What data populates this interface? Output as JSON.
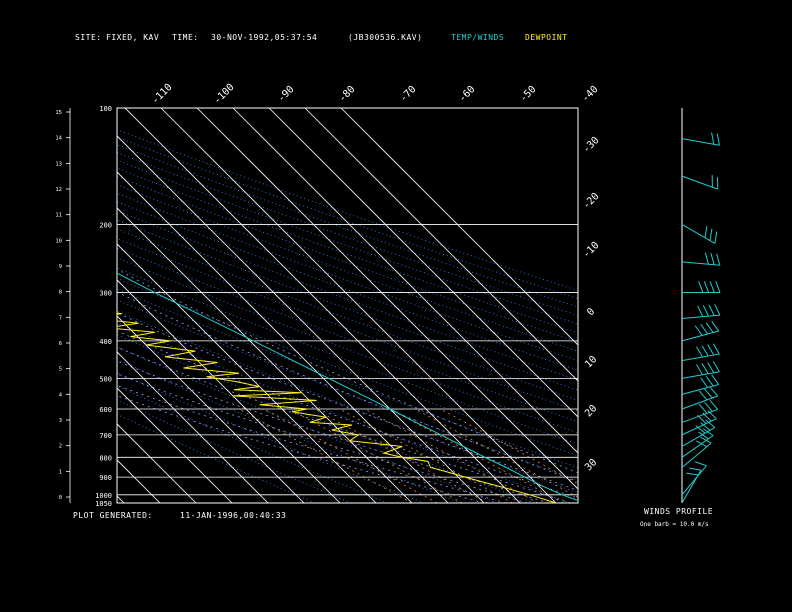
{
  "header": {
    "site_label": "SITE:",
    "site_value": "FIXED, KAV",
    "time_label": "TIME:",
    "time_value": "30-NOV-1992,05:37:54",
    "file_value": "(JB300536.KAV)",
    "legend_temp": "TEMP/WINDS",
    "legend_dew": "DEWPOINT"
  },
  "footer": {
    "generated_label": "PLOT GENERATED:",
    "generated_value": "11-JAN-1996,00:40:33",
    "winds_title": "WINDS PROFILE",
    "winds_note": "One barb = 10.0 m/s"
  },
  "colors": {
    "temp": "#22cccc",
    "dew": "#ffee22",
    "grid": "#ffffff",
    "mixing": "#ff9944",
    "adiabat": "#3388ff",
    "moist": "#9999ff",
    "barb": "#22cccc"
  },
  "chart_data": {
    "type": "line",
    "title": "",
    "xlabel": "",
    "ylabel": "",
    "pressure_levels": [
      "100",
      "200",
      "300",
      "400",
      "500",
      "600",
      "700",
      "800",
      "900",
      "1000",
      "1050"
    ],
    "height_ticks": [
      "0",
      "1",
      "2",
      "3",
      "4",
      "5",
      "6",
      "7",
      "8",
      "9",
      "10",
      "11",
      "12",
      "13",
      "14",
      "15"
    ],
    "isotherm_labels_top": [
      "-110",
      "-100",
      "-90",
      "-80",
      "-70",
      "-60",
      "-50",
      "-40"
    ],
    "isotherm_labels_right": [
      "-30",
      "-20",
      "-10",
      "0",
      "10",
      "20",
      "30"
    ],
    "series": [
      {
        "name": "TEMP/WINDS",
        "points": [
          [
            1050,
            18
          ],
          [
            1000,
            14
          ],
          [
            950,
            11
          ],
          [
            900,
            8.5
          ],
          [
            850,
            6
          ],
          [
            800,
            3
          ],
          [
            750,
            0
          ],
          [
            700,
            -3
          ],
          [
            650,
            -6.5
          ],
          [
            600,
            -10
          ],
          [
            550,
            -14
          ],
          [
            500,
            -18.5
          ],
          [
            450,
            -23.5
          ],
          [
            400,
            -29
          ],
          [
            350,
            -35.5
          ],
          [
            300,
            -43
          ],
          [
            250,
            -51
          ],
          [
            220,
            -55
          ],
          [
            200,
            -58
          ],
          [
            180,
            -61
          ],
          [
            160,
            -64
          ],
          [
            140,
            -67
          ],
          [
            120,
            -72
          ],
          [
            110,
            -76
          ],
          [
            100,
            -79
          ]
        ]
      },
      {
        "name": "DEWPOINT",
        "points": [
          [
            1050,
            10
          ],
          [
            1000,
            5
          ],
          [
            960,
            0
          ],
          [
            930,
            -4
          ],
          [
            900,
            -8
          ],
          [
            870,
            -12
          ],
          [
            850,
            -15
          ],
          [
            820,
            -14
          ],
          [
            800,
            -20
          ],
          [
            780,
            -24
          ],
          [
            750,
            -17
          ],
          [
            725,
            -30
          ],
          [
            700,
            -26
          ],
          [
            680,
            -32
          ],
          [
            660,
            -25
          ],
          [
            650,
            -36
          ],
          [
            630,
            -30
          ],
          [
            610,
            -38
          ],
          [
            600,
            -33
          ],
          [
            585,
            -45
          ],
          [
            570,
            -28
          ],
          [
            555,
            -50
          ],
          [
            545,
            -30
          ],
          [
            535,
            -48
          ],
          [
            525,
            -40
          ],
          [
            510,
            -45
          ],
          [
            495,
            -52
          ],
          [
            485,
            -42
          ],
          [
            470,
            -56
          ],
          [
            455,
            -45
          ],
          [
            440,
            -58
          ],
          [
            425,
            -48
          ],
          [
            410,
            -60
          ],
          [
            400,
            -52
          ],
          [
            390,
            -62
          ],
          [
            380,
            -54
          ],
          [
            370,
            -66
          ],
          [
            360,
            -56
          ],
          [
            350,
            -68
          ],
          [
            340,
            -58
          ],
          [
            330,
            -70
          ],
          [
            320,
            -62
          ],
          [
            310,
            -72
          ],
          [
            300,
            -60
          ],
          [
            290,
            -66
          ],
          [
            270,
            -64
          ],
          [
            250,
            -70
          ],
          [
            220,
            -74
          ],
          [
            200,
            -78
          ],
          [
            180,
            -82
          ],
          [
            160,
            -86
          ],
          [
            140,
            -90
          ],
          [
            120,
            -94
          ],
          [
            100,
            -97
          ]
        ]
      }
    ],
    "winds": [
      {
        "p": 1050,
        "dir": 210,
        "spd": 15
      },
      {
        "p": 1000,
        "dir": 220,
        "spd": 12
      },
      {
        "p": 850,
        "dir": 230,
        "spd": 18
      },
      {
        "p": 800,
        "dir": 235,
        "spd": 22
      },
      {
        "p": 750,
        "dir": 240,
        "spd": 25
      },
      {
        "p": 700,
        "dir": 245,
        "spd": 28
      },
      {
        "p": 650,
        "dir": 250,
        "spd": 30
      },
      {
        "p": 600,
        "dir": 250,
        "spd": 32
      },
      {
        "p": 550,
        "dir": 255,
        "spd": 30
      },
      {
        "p": 500,
        "dir": 260,
        "spd": 35
      },
      {
        "p": 450,
        "dir": 260,
        "spd": 38
      },
      {
        "p": 400,
        "dir": 255,
        "spd": 36
      },
      {
        "p": 350,
        "dir": 265,
        "spd": 40
      },
      {
        "p": 300,
        "dir": 270,
        "spd": 42
      },
      {
        "p": 250,
        "dir": 275,
        "spd": 30
      },
      {
        "p": 200,
        "dir": 300,
        "spd": 25
      },
      {
        "p": 150,
        "dir": 290,
        "spd": 20
      },
      {
        "p": 120,
        "dir": 280,
        "spd": 22
      }
    ]
  }
}
